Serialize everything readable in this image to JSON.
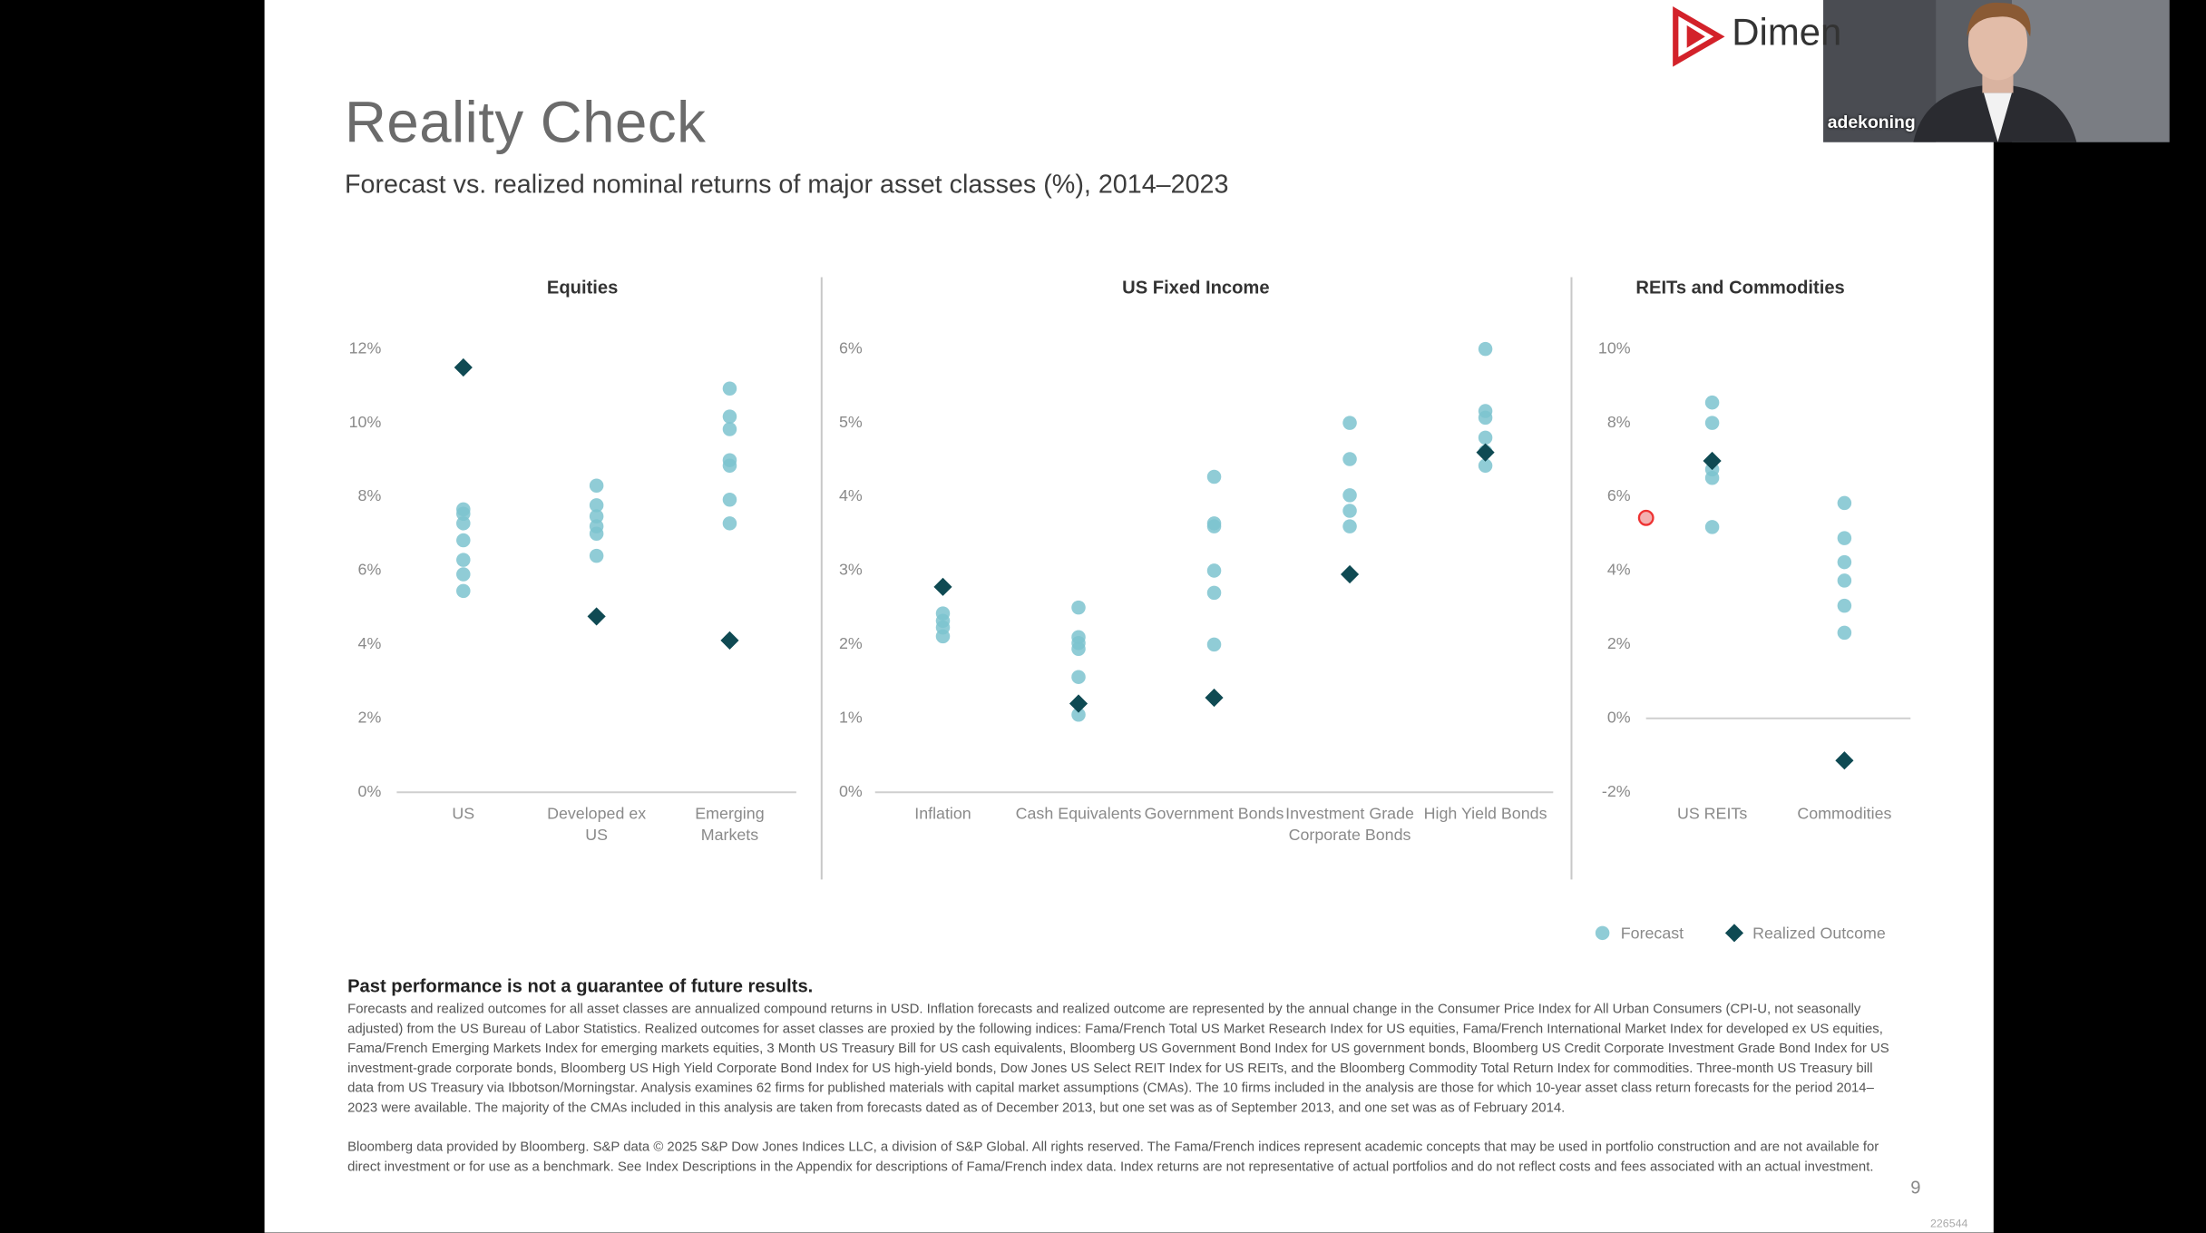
{
  "slide": {
    "title": "Reality Check",
    "subtitle": "Forecast vs. realized nominal returns of major asset classes (%), 2014–2023",
    "disclaimer": "Past performance is not a guarantee of future results.",
    "footnotes": [
      "Forecasts and realized outcomes for all asset classes are annualized compound returns in USD. Inflation forecasts and realized outcome are represented by the annual change in the Consumer Price Index for All Urban Consumers (CPI-U, not seasonally adjusted) from the US Bureau of Labor Statistics. Realized outcomes for asset classes are proxied by the following indices: Fama/French Total US Market Research Index for US equities, Fama/French International Market Index for developed ex US equities, Fama/French Emerging Markets Index for emerging markets equities, 3 Month US Treasury Bill for US cash equivalents, Bloomberg US Government Bond Index for US government bonds, Bloomberg US Credit Corporate Investment Grade Bond Index for US investment-grade corporate bonds, Bloomberg US High Yield Corporate Bond Index for US high-yield bonds, Dow Jones US Select REIT Index for US REITs, and the Bloomberg Commodity Total Return Index for commodities. Three-month US Treasury bill data from US Treasury via Ibbotson/Morningstar. Analysis examines 62 firms for published materials with capital market assumptions (CMAs). The 10 firms included in the analysis are those for which 10-year asset class return forecasts for the period 2014–2023 were available. The majority of the CMAs included in this analysis are taken from forecasts dated as of December 2013, but one set was as of September 2013, and one set was as of February 2014.",
      "Bloomberg data provided by Bloomberg. S&P data © 2025 S&P Dow Jones Indices LLC, a division of S&P Global. All rights reserved. The Fama/French indices represent academic concepts that may be used in portfolio construction and are not available for direct investment or for use as a benchmark. See Index Descriptions in the Appendix for descriptions of Fama/French index data. Index returns are not representative of actual portfolios and do not reflect costs and fees associated with an actual investment."
    ],
    "page_number": "9",
    "code": "226544",
    "logo": "Dimen"
  },
  "video": {
    "name": "adekoning"
  },
  "legend": [
    {
      "name": "Forecast",
      "color": "#7cc3cf",
      "marker": "circle"
    },
    {
      "name": "Realized Outcome",
      "color": "#0f4a53",
      "marker": "diamond"
    }
  ],
  "chart_data": [
    {
      "type": "strip",
      "title": "Equities",
      "categories": [
        "US",
        "Developed ex US",
        "Emerging Markets"
      ],
      "series": [
        {
          "values": [
            [
              7.66,
              7.54,
              7.28,
              6.82,
              6.29,
              5.9,
              5.45
            ],
            [
              8.3,
              7.77,
              7.47,
              7.2,
              7.0,
              6.4
            ],
            [
              10.93,
              10.17,
              9.83,
              8.99,
              8.84,
              7.92,
              7.28
            ]
          ]
        },
        {
          "values": [
            11.5,
            4.76,
            4.11
          ]
        }
      ],
      "ylim": [
        0,
        12
      ],
      "yticks": [
        {
          "value": 0,
          "label": "0%"
        },
        {
          "value": 2,
          "label": "2%"
        },
        {
          "value": 4,
          "label": "4%"
        },
        {
          "value": 6,
          "label": "6%"
        },
        {
          "value": 8,
          "label": "8%"
        },
        {
          "value": 10,
          "label": "10%"
        },
        {
          "value": 12,
          "label": "12%"
        }
      ]
    },
    {
      "type": "strip",
      "title": "US Fixed Income",
      "categories": [
        "Inflation",
        "Cash Equivalents",
        "Government Bonds",
        "Investment Grade Corporate Bonds",
        "High Yield Bonds"
      ],
      "series": [
        {
          "values": [
            [
              2.42,
              2.32,
              2.23,
              2.11
            ],
            [
              2.5,
              2.1,
              2.02,
              1.94,
              1.56,
              1.05
            ],
            [
              4.27,
              3.64,
              3.6,
              3.0,
              2.7,
              2.0
            ],
            [
              5.0,
              4.51,
              4.02,
              3.81,
              3.6
            ],
            [
              6.0,
              5.16,
              5.07,
              4.8,
              4.61,
              4.42
            ]
          ]
        },
        {
          "values": [
            2.78,
            1.2,
            1.28,
            2.95,
            4.6
          ]
        }
      ],
      "ylim": [
        0,
        6
      ],
      "yticks": [
        {
          "value": 0,
          "label": "0%"
        },
        {
          "value": 1,
          "label": "1%"
        },
        {
          "value": 2,
          "label": "2%"
        },
        {
          "value": 3,
          "label": "3%"
        },
        {
          "value": 4,
          "label": "4%"
        },
        {
          "value": 5,
          "label": "5%"
        },
        {
          "value": 6,
          "label": "6%"
        }
      ]
    },
    {
      "type": "strip",
      "title": "REITs and Commodities",
      "categories": [
        "US REITs",
        "Commodities"
      ],
      "series": [
        {
          "values": [
            [
              8.55,
              8.0,
              6.74,
              6.51,
              5.18
            ],
            [
              5.83,
              4.88,
              4.23,
              3.73,
              3.05,
              2.32
            ]
          ]
        },
        {
          "values": [
            6.97,
            -1.14
          ]
        }
      ],
      "ylim": [
        -2,
        10
      ],
      "yticks": [
        {
          "value": -2,
          "label": "-2%"
        },
        {
          "value": 0,
          "label": "0%"
        },
        {
          "value": 2,
          "label": "2%"
        },
        {
          "value": 4,
          "label": "4%"
        },
        {
          "value": 6,
          "label": "6%"
        },
        {
          "value": 8,
          "label": "8%"
        },
        {
          "value": 10,
          "label": "10%"
        }
      ]
    }
  ]
}
